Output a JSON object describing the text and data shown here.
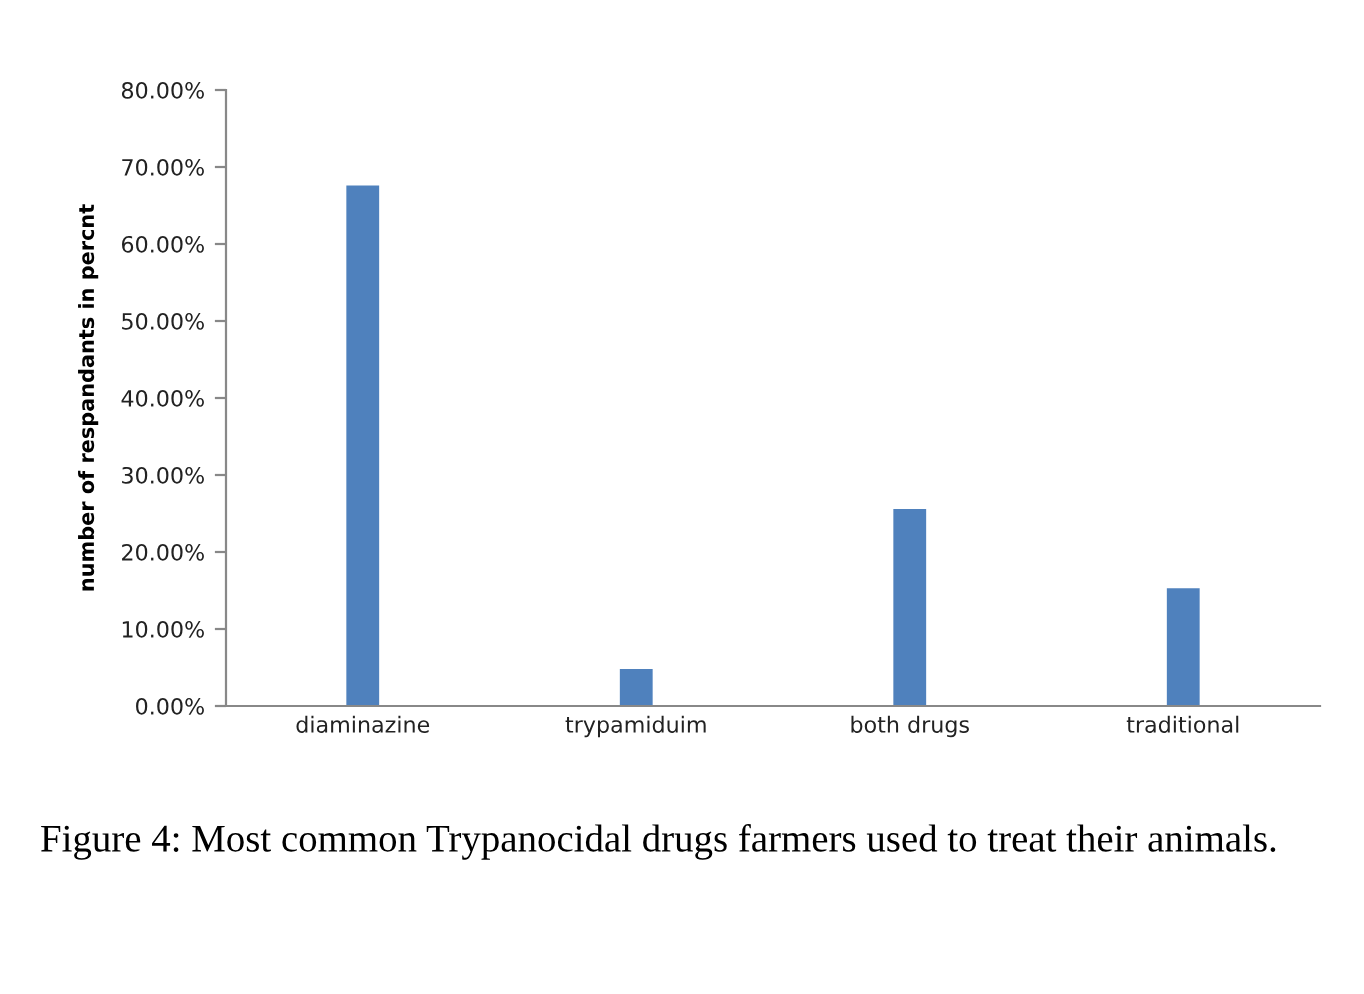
{
  "chart_data": {
    "type": "bar",
    "ylabel": "number of respandants in percnt",
    "categories": [
      "diaminazine",
      "trypamiduim",
      "both drugs",
      "traditional"
    ],
    "values": [
      67.6,
      4.8,
      25.6,
      15.3
    ],
    "color": "#4f81bd",
    "ylim": [
      0,
      80
    ],
    "yticks": [
      {
        "value": 0,
        "label": "0.00%"
      },
      {
        "value": 10,
        "label": "10.00%"
      },
      {
        "value": 20,
        "label": "20.00%"
      },
      {
        "value": 30,
        "label": "30.00%"
      },
      {
        "value": 40,
        "label": "40.00%"
      },
      {
        "value": 50,
        "label": "50.00%"
      },
      {
        "value": 60,
        "label": "60.00%"
      },
      {
        "value": 70,
        "label": "70.00%"
      },
      {
        "value": 80,
        "label": "80.00%"
      }
    ],
    "grid": false,
    "legend": false,
    "annotations": [
      "Figure 4: Most common Trypanocidal drugs farmers used to treat their animals."
    ]
  }
}
